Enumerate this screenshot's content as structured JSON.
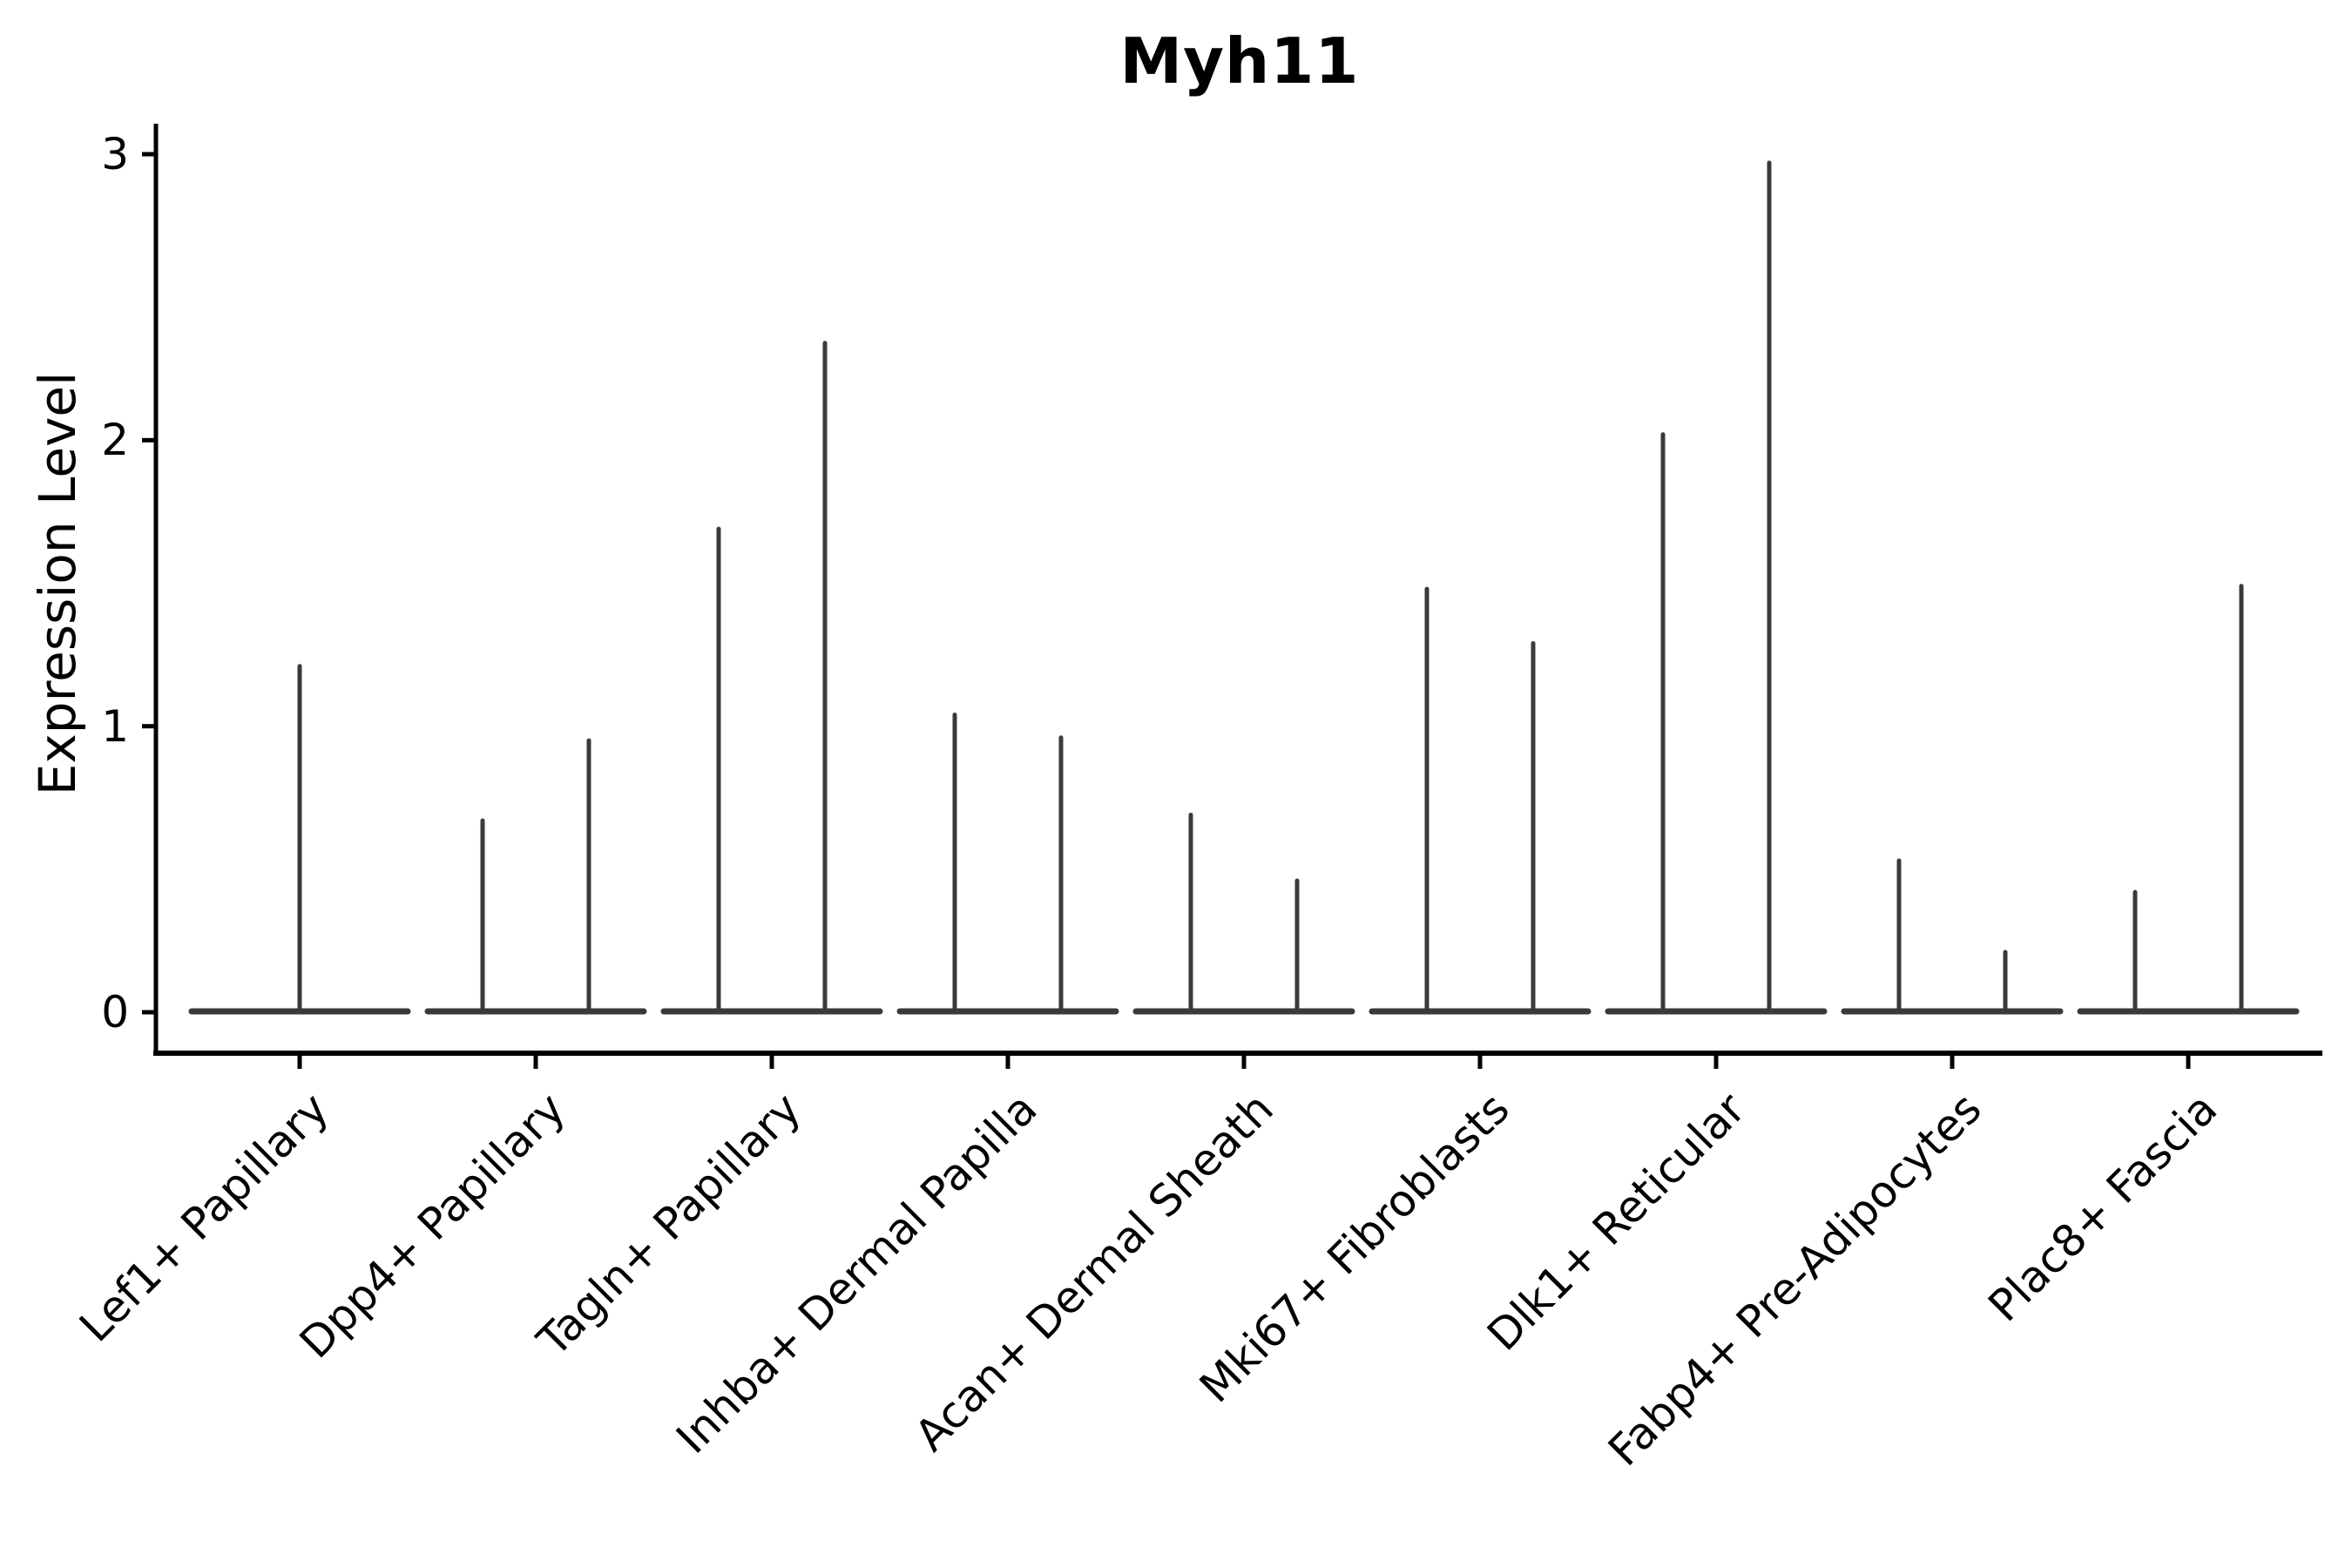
{
  "title": "Myh11",
  "y_axis": {
    "label": "Expression Level",
    "tick_labels": [
      "0",
      "1",
      "2",
      "3"
    ]
  },
  "colors": {
    "violin_stroke": "#3a3a3a",
    "axis": "#000000",
    "background": "#ffffff"
  },
  "chart_data": {
    "type": "violin",
    "title": "Myh11",
    "xlabel": "",
    "ylabel": "Expression Level",
    "ylim": [
      0,
      3
    ],
    "yticks": [
      0,
      1,
      2,
      3
    ],
    "grid": false,
    "legend": "none",
    "description": "Zero-inflated expression violins: wide flat base at 0 with thin spikes reaching the maximum expression value; single centered spike when one spike present, otherwise two dodged spikes per category.",
    "categories": [
      {
        "label": "Lef1+ Papillary",
        "spike_maxima": [
          1.21
        ]
      },
      {
        "label": "Dpp4+ Papillary",
        "spike_maxima": [
          0.67,
          0.95
        ]
      },
      {
        "label": "Tagln+ Papillary",
        "spike_maxima": [
          1.69,
          2.34
        ]
      },
      {
        "label": "Inhba+ Dermal Papilla",
        "spike_maxima": [
          1.04,
          0.96
        ]
      },
      {
        "label": "Acan+ Dermal Sheath",
        "spike_maxima": [
          0.69,
          0.46
        ]
      },
      {
        "label": "Mki67+ Fibroblasts",
        "spike_maxima": [
          1.48,
          1.29
        ]
      },
      {
        "label": "Dlk1+ Reticular",
        "spike_maxima": [
          2.02,
          2.97
        ]
      },
      {
        "label": "Fabp4+ Pre-Adipocytes",
        "spike_maxima": [
          0.53,
          0.21
        ]
      },
      {
        "label": "Plac8+ Fascia",
        "spike_maxima": [
          0.42,
          1.49
        ]
      }
    ]
  }
}
